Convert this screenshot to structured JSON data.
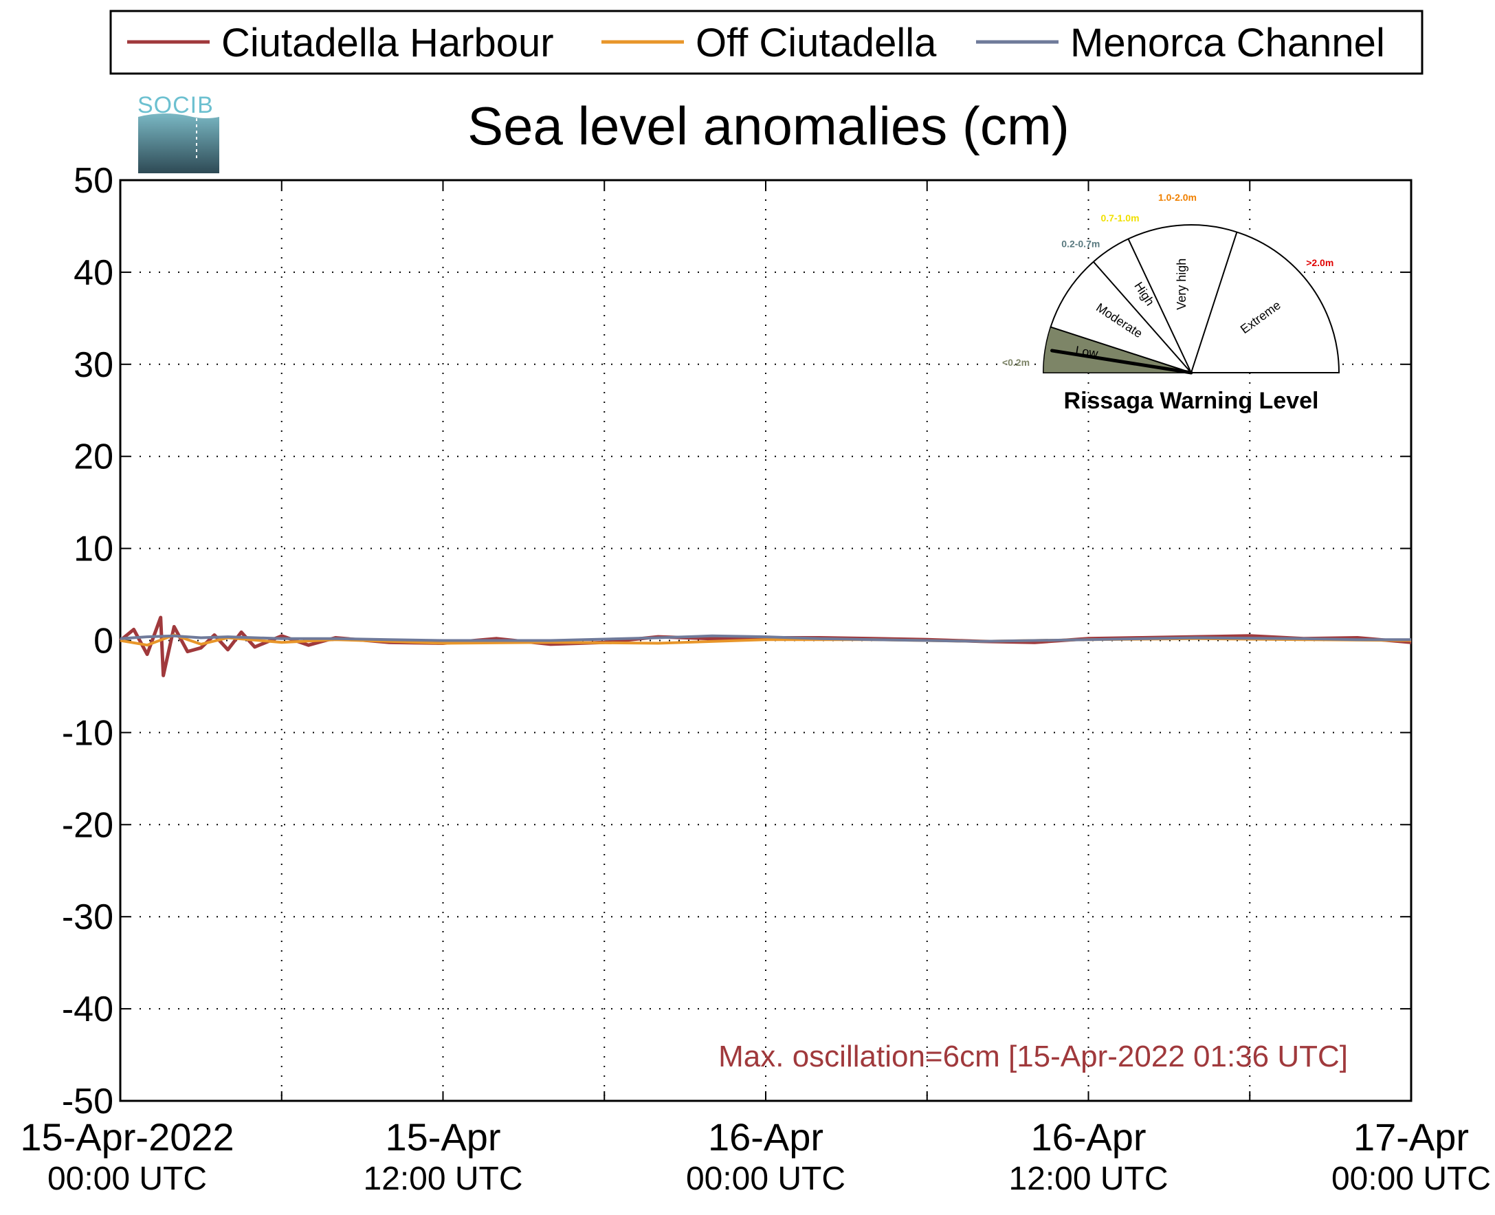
{
  "chart_data": {
    "type": "line",
    "title": "Sea level anomalies (cm)",
    "xlabel": "",
    "ylabel": "",
    "ylim": [
      -50,
      50
    ],
    "yticks": [
      50,
      40,
      30,
      20,
      10,
      0,
      -10,
      -20,
      -30,
      -40,
      -50
    ],
    "xlim": [
      "2022-04-15 00:00",
      "2022-04-17 00:00"
    ],
    "xticks": [
      {
        "line1": "15-Apr-2022",
        "line2": "00:00 UTC",
        "hour": 0
      },
      {
        "line1": "15-Apr",
        "line2": "12:00 UTC",
        "hour": 12
      },
      {
        "line1": "16-Apr",
        "line2": "00:00 UTC",
        "hour": 24
      },
      {
        "line1": "16-Apr",
        "line2": "12:00 UTC",
        "hour": 36
      },
      {
        "line1": "17-Apr",
        "line2": "00:00 UTC",
        "hour": 48
      }
    ],
    "grid": true,
    "legend_position": "top",
    "series": [
      {
        "name": "Ciutadella Harbour",
        "color": "#a0393c",
        "x": [
          0,
          0.5,
          1,
          1.5,
          1.6,
          2,
          2.5,
          3,
          3.5,
          4,
          4.5,
          5,
          6,
          7,
          8,
          10,
          12,
          14,
          16,
          18,
          20,
          22,
          24,
          26,
          28,
          30,
          32,
          34,
          36,
          38,
          40,
          42,
          44,
          46,
          48
        ],
        "y": [
          0,
          1.2,
          -1.5,
          2.5,
          -3.8,
          1.5,
          -1.2,
          -0.8,
          0.6,
          -1.0,
          0.9,
          -0.7,
          0.5,
          -0.5,
          0.3,
          -0.2,
          -0.3,
          0.2,
          -0.4,
          -0.2,
          0.4,
          0.2,
          0.3,
          0.3,
          0.2,
          0.1,
          -0.1,
          -0.2,
          0.2,
          0.3,
          0.4,
          0.5,
          0.2,
          0.3,
          -0.2
        ]
      },
      {
        "name": "Off Ciutadella",
        "color": "#e8962a",
        "x": [
          0,
          1,
          2,
          3,
          4,
          6,
          8,
          10,
          12,
          16,
          20,
          24,
          28,
          32,
          36,
          40,
          44,
          48
        ],
        "y": [
          0,
          -0.5,
          0.6,
          -0.4,
          0.3,
          -0.2,
          0.1,
          -0.1,
          -0.3,
          -0.2,
          -0.3,
          0.1,
          0.1,
          -0.1,
          0.1,
          0.2,
          0.1,
          0.0
        ]
      },
      {
        "name": "Menorca Channel",
        "color": "#6f7a9a",
        "x": [
          0,
          1,
          2,
          3,
          4,
          6,
          8,
          10,
          12,
          16,
          20,
          22,
          24,
          26,
          28,
          30,
          32,
          34,
          36,
          40,
          44,
          46,
          48
        ],
        "y": [
          0.2,
          0.4,
          0.5,
          0.3,
          0.4,
          0.2,
          0.2,
          0.1,
          0.0,
          0.0,
          0.3,
          0.5,
          0.4,
          0.2,
          0.1,
          0.0,
          -0.1,
          0.0,
          0.1,
          0.3,
          0.2,
          0.1,
          0.1
        ]
      }
    ],
    "annotation": "Max. oscillation=6cm [15-Apr-2022 01:36 UTC]",
    "annotation_color": "#a0393c"
  },
  "gauge": {
    "title": "Rissaga Warning Level",
    "levels": [
      {
        "name": "Low",
        "range": "<0.2m",
        "color": "#7d8567"
      },
      {
        "name": "Moderate",
        "range": "0.2-0.7m",
        "color": "#5a7a80"
      },
      {
        "name": "High",
        "range": "0.7-1.0m",
        "color": "#f0e000"
      },
      {
        "name": "Very high",
        "range": "1.0-2.0m",
        "color": "#f08000"
      },
      {
        "name": "Extreme",
        "range": ">2.0m",
        "color": "#e00000"
      }
    ],
    "current_level": "Low",
    "active_fill": "#7d8567"
  },
  "logo": {
    "text": "SOCIB"
  }
}
